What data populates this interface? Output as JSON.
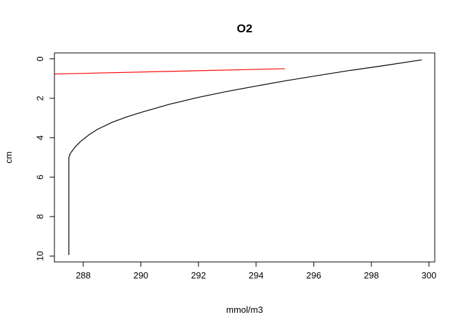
{
  "chart_data": {
    "type": "line",
    "title": "O2",
    "xlabel": "mmol/m3",
    "ylabel": "cm",
    "xlim": [
      287.0,
      300.2
    ],
    "ylim": [
      10.3,
      -0.3
    ],
    "y_reversed": true,
    "x_ticks": [
      288,
      290,
      292,
      294,
      296,
      298,
      300
    ],
    "y_ticks": [
      0,
      2,
      4,
      6,
      8,
      10
    ],
    "grid": false,
    "legend": "none",
    "series": [
      {
        "color": "#000000",
        "x": [
          299.75,
          298.4,
          297.2,
          296.0,
          295.0,
          294.0,
          293.0,
          292.0,
          291.0,
          290.0,
          289.5,
          289.0,
          288.5,
          288.2,
          287.9,
          287.7,
          287.55,
          287.5,
          287.5,
          287.5,
          287.5
        ],
        "y": [
          0.05,
          0.35,
          0.6,
          0.88,
          1.12,
          1.38,
          1.65,
          1.95,
          2.3,
          2.72,
          2.95,
          3.22,
          3.57,
          3.85,
          4.2,
          4.5,
          4.8,
          5.0,
          6.0,
          8.0,
          9.95
        ]
      },
      {
        "color": "#ff0000",
        "x": [
          287.0,
          295.0
        ],
        "y": [
          0.77,
          0.5
        ]
      }
    ]
  }
}
